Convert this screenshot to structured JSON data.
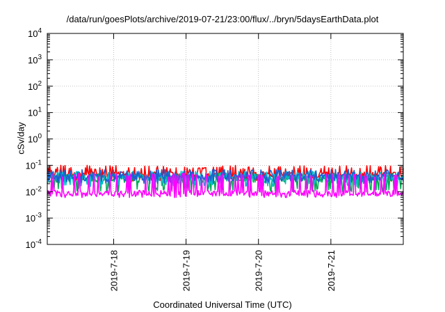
{
  "chart_data": {
    "type": "line",
    "title": "/data/run/goesPlots/archive/2019-07-21/23:00/flux/../bryn/5daysEarthData.plot",
    "xlabel": "Coordinated Universal Time (UTC)",
    "ylabel": "cSv/day",
    "yscale": "log",
    "ylim": [
      0.0001,
      10000
    ],
    "y_ticks": [
      {
        "value": 0.0001,
        "base": "10",
        "exp": "-4"
      },
      {
        "value": 0.001,
        "base": "10",
        "exp": "-3"
      },
      {
        "value": 0.01,
        "base": "10",
        "exp": "-2"
      },
      {
        "value": 0.1,
        "base": "10",
        "exp": "-1"
      },
      {
        "value": 1,
        "base": "10",
        "exp": "0"
      },
      {
        "value": 10,
        "base": "10",
        "exp": "1"
      },
      {
        "value": 100,
        "base": "10",
        "exp": "2"
      },
      {
        "value": 1000,
        "base": "10",
        "exp": "3"
      },
      {
        "value": 10000,
        "base": "10",
        "exp": "4"
      }
    ],
    "xlim": [
      "2019-07-17 02:00",
      "2019-07-22 00:00"
    ],
    "x_ticks": [
      {
        "value": "2019-07-18 00:00",
        "label": "2019-7-18"
      },
      {
        "value": "2019-07-19 00:00",
        "label": "2019-7-19"
      },
      {
        "value": "2019-07-20 00:00",
        "label": "2019-7-20"
      },
      {
        "value": "2019-07-21 00:00",
        "label": "2019-7-21"
      }
    ],
    "grid": true,
    "legend": "none",
    "series": [
      {
        "color": "#ff0000",
        "typical": 0.045,
        "low": 0.025,
        "high": 0.1
      },
      {
        "color": "#00aa55",
        "typical": 0.03,
        "low": 0.01,
        "high": 0.05
      },
      {
        "color": "#00bbcc",
        "typical": 0.035,
        "low": 0.015,
        "high": 0.06
      },
      {
        "color": "#1e5fd2",
        "typical": 0.037,
        "low": 0.02,
        "high": 0.07
      },
      {
        "color": "#ff00ff",
        "typical": 0.009,
        "low": 0.006,
        "high": 0.05
      }
    ]
  }
}
